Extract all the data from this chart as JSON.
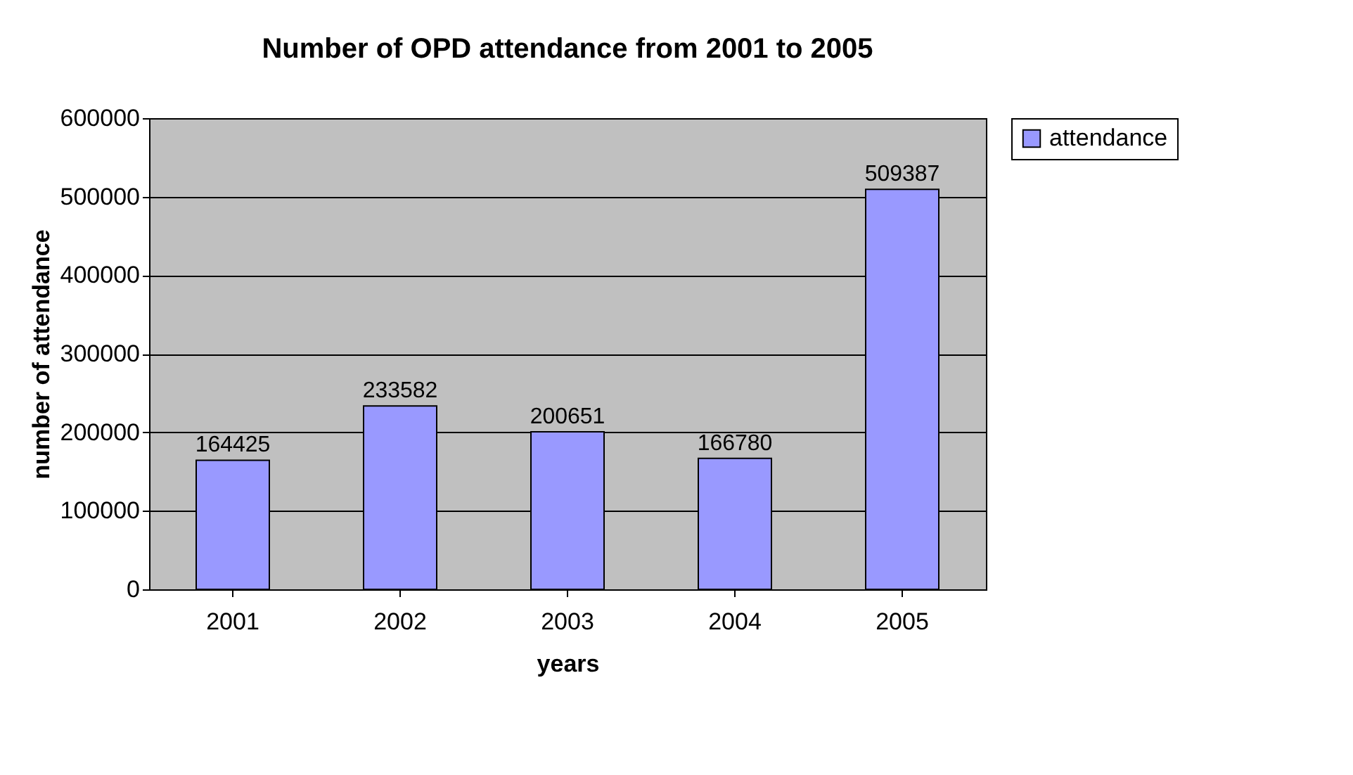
{
  "chart_data": {
    "type": "bar",
    "title": "Number of OPD attendance from 2001 to 2005",
    "xlabel": "years",
    "ylabel": "number of attendance",
    "categories": [
      "2001",
      "2002",
      "2003",
      "2004",
      "2005"
    ],
    "series": [
      {
        "name": "attendance",
        "color": "#9999ff",
        "values": [
          164425,
          233582,
          200651,
          166780,
          509387
        ]
      }
    ],
    "ylim": [
      0,
      600000
    ],
    "yticks": [
      0,
      100000,
      200000,
      300000,
      400000,
      500000,
      600000
    ],
    "grid": "y",
    "legend": "right",
    "data_labels": true
  }
}
